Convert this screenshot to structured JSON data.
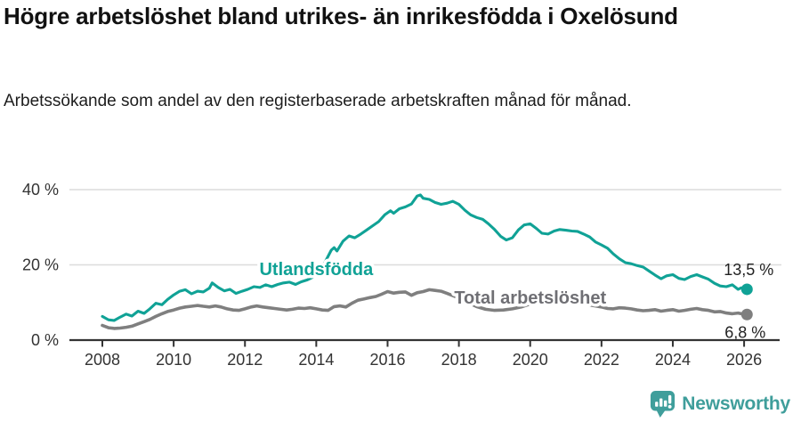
{
  "header": {
    "title": "Högre arbetslöshet bland utrikes- än inrikesfödda i Oxelösund",
    "subtitle": "Arbetssökande som andel av den registerbaserade arbetskraften månad för månad."
  },
  "footer": {
    "brand": "Newsworthy",
    "brand_color": "#3F9E9B",
    "logo_icon": "bar-chart-speech-bubble-icon"
  },
  "chart_data": {
    "type": "line",
    "title": "Högre arbetslöshet bland utrikes- än inrikesfödda i Oxelösund",
    "subtitle": "Arbetssökande som andel av den registerbaserade arbetskraften månad för månad.",
    "grid": "horizontal-only",
    "legend_position": "inline-labels-on-lines",
    "colors": {
      "axis": "#333333",
      "gridline": "#DCDCDC",
      "tick_label": "#333333"
    },
    "x_axis": {
      "range": [
        2007.6,
        2026.45
      ],
      "ticks": [
        2008,
        2010,
        2012,
        2014,
        2016,
        2018,
        2020,
        2022,
        2024,
        2026
      ]
    },
    "y_axis": {
      "range": [
        0,
        43
      ],
      "ticks": [
        {
          "value": 0,
          "label": "0 %"
        },
        {
          "value": 20,
          "label": "20 %"
        },
        {
          "value": 40,
          "label": "40 %"
        }
      ]
    },
    "series": [
      {
        "name": "Total arbetslöshet",
        "color": "#7F7F7F",
        "label_color": "#6F6F74",
        "label_anchor": {
          "x": 2020.0,
          "y": 9.7
        },
        "end_label": "6,8 %",
        "end_value": 6.8,
        "points": [
          [
            2008.0,
            3.9
          ],
          [
            2008.17,
            3.3
          ],
          [
            2008.33,
            3.1
          ],
          [
            2008.5,
            3.2
          ],
          [
            2008.67,
            3.4
          ],
          [
            2008.83,
            3.7
          ],
          [
            2009.0,
            4.3
          ],
          [
            2009.17,
            4.9
          ],
          [
            2009.33,
            5.5
          ],
          [
            2009.5,
            6.3
          ],
          [
            2009.67,
            7.0
          ],
          [
            2009.83,
            7.6
          ],
          [
            2010.0,
            8.0
          ],
          [
            2010.17,
            8.5
          ],
          [
            2010.33,
            8.8
          ],
          [
            2010.5,
            9.0
          ],
          [
            2010.67,
            9.2
          ],
          [
            2010.83,
            9.0
          ],
          [
            2011.0,
            8.8
          ],
          [
            2011.17,
            9.1
          ],
          [
            2011.33,
            8.8
          ],
          [
            2011.5,
            8.3
          ],
          [
            2011.67,
            8.0
          ],
          [
            2011.83,
            7.9
          ],
          [
            2012.0,
            8.3
          ],
          [
            2012.17,
            8.8
          ],
          [
            2012.33,
            9.1
          ],
          [
            2012.5,
            8.8
          ],
          [
            2012.67,
            8.6
          ],
          [
            2012.83,
            8.4
          ],
          [
            2013.0,
            8.2
          ],
          [
            2013.17,
            8.0
          ],
          [
            2013.33,
            8.2
          ],
          [
            2013.5,
            8.5
          ],
          [
            2013.67,
            8.4
          ],
          [
            2013.83,
            8.6
          ],
          [
            2014.0,
            8.3
          ],
          [
            2014.17,
            8.0
          ],
          [
            2014.33,
            7.9
          ],
          [
            2014.5,
            8.9
          ],
          [
            2014.67,
            9.1
          ],
          [
            2014.83,
            8.8
          ],
          [
            2015.0,
            9.8
          ],
          [
            2015.17,
            10.6
          ],
          [
            2015.33,
            10.9
          ],
          [
            2015.5,
            11.3
          ],
          [
            2015.67,
            11.6
          ],
          [
            2015.83,
            12.2
          ],
          [
            2016.0,
            12.9
          ],
          [
            2016.17,
            12.5
          ],
          [
            2016.33,
            12.7
          ],
          [
            2016.5,
            12.8
          ],
          [
            2016.67,
            11.9
          ],
          [
            2016.83,
            12.6
          ],
          [
            2017.0,
            12.9
          ],
          [
            2017.17,
            13.4
          ],
          [
            2017.33,
            13.2
          ],
          [
            2017.5,
            13.0
          ],
          [
            2017.67,
            12.4
          ],
          [
            2017.83,
            11.8
          ],
          [
            2018.0,
            11.2
          ],
          [
            2018.25,
            10.0
          ],
          [
            2018.5,
            8.9
          ],
          [
            2018.75,
            8.2
          ],
          [
            2019.0,
            7.9
          ],
          [
            2019.25,
            8.0
          ],
          [
            2019.5,
            8.3
          ],
          [
            2019.75,
            8.8
          ],
          [
            2020.0,
            9.6
          ],
          [
            2020.25,
            10.3
          ],
          [
            2020.5,
            10.7
          ],
          [
            2020.75,
            10.5
          ],
          [
            2021.0,
            10.2
          ],
          [
            2021.25,
            9.9
          ],
          [
            2021.5,
            9.6
          ],
          [
            2021.75,
            9.2
          ],
          [
            2022.0,
            8.8
          ],
          [
            2022.17,
            8.4
          ],
          [
            2022.33,
            8.3
          ],
          [
            2022.5,
            8.6
          ],
          [
            2022.67,
            8.5
          ],
          [
            2022.83,
            8.3
          ],
          [
            2023.0,
            8.0
          ],
          [
            2023.17,
            7.8
          ],
          [
            2023.33,
            7.9
          ],
          [
            2023.5,
            8.1
          ],
          [
            2023.67,
            7.7
          ],
          [
            2023.83,
            7.9
          ],
          [
            2024.0,
            8.1
          ],
          [
            2024.17,
            7.7
          ],
          [
            2024.33,
            7.9
          ],
          [
            2024.5,
            8.2
          ],
          [
            2024.67,
            8.4
          ],
          [
            2024.83,
            8.1
          ],
          [
            2025.0,
            7.9
          ],
          [
            2025.17,
            7.5
          ],
          [
            2025.33,
            7.6
          ],
          [
            2025.5,
            7.2
          ],
          [
            2025.67,
            7.0
          ],
          [
            2025.83,
            7.2
          ],
          [
            2025.92,
            7.0
          ],
          [
            2026.08,
            6.8
          ]
        ]
      },
      {
        "name": "Utlandsfödda",
        "color": "#10A296",
        "label_color": "#10A296",
        "label_anchor": {
          "x": 2014.0,
          "y": 17.3
        },
        "end_label": "13,5 %",
        "end_value": 13.5,
        "points": [
          [
            2008.0,
            6.3
          ],
          [
            2008.17,
            5.4
          ],
          [
            2008.33,
            5.2
          ],
          [
            2008.5,
            6.1
          ],
          [
            2008.67,
            6.9
          ],
          [
            2008.83,
            6.4
          ],
          [
            2009.0,
            7.7
          ],
          [
            2009.17,
            7.1
          ],
          [
            2009.33,
            8.3
          ],
          [
            2009.5,
            9.8
          ],
          [
            2009.67,
            9.4
          ],
          [
            2009.83,
            10.8
          ],
          [
            2010.0,
            12.0
          ],
          [
            2010.17,
            13.0
          ],
          [
            2010.33,
            13.4
          ],
          [
            2010.5,
            12.3
          ],
          [
            2010.67,
            13.0
          ],
          [
            2010.83,
            12.8
          ],
          [
            2011.0,
            13.8
          ],
          [
            2011.08,
            15.2
          ],
          [
            2011.25,
            14.0
          ],
          [
            2011.42,
            13.1
          ],
          [
            2011.58,
            13.5
          ],
          [
            2011.75,
            12.4
          ],
          [
            2011.92,
            13.0
          ],
          [
            2012.08,
            13.5
          ],
          [
            2012.25,
            14.2
          ],
          [
            2012.42,
            14.0
          ],
          [
            2012.58,
            14.7
          ],
          [
            2012.75,
            14.2
          ],
          [
            2012.92,
            14.8
          ],
          [
            2013.08,
            15.2
          ],
          [
            2013.25,
            15.4
          ],
          [
            2013.42,
            14.8
          ],
          [
            2013.58,
            15.5
          ],
          [
            2013.75,
            16.0
          ],
          [
            2013.92,
            16.8
          ],
          [
            2014.08,
            18.5
          ],
          [
            2014.25,
            20.8
          ],
          [
            2014.42,
            23.9
          ],
          [
            2014.5,
            24.6
          ],
          [
            2014.58,
            23.7
          ],
          [
            2014.75,
            26.3
          ],
          [
            2014.92,
            27.7
          ],
          [
            2015.08,
            27.2
          ],
          [
            2015.25,
            28.2
          ],
          [
            2015.42,
            29.3
          ],
          [
            2015.58,
            30.4
          ],
          [
            2015.75,
            31.5
          ],
          [
            2015.92,
            33.3
          ],
          [
            2016.08,
            34.4
          ],
          [
            2016.17,
            33.7
          ],
          [
            2016.33,
            34.9
          ],
          [
            2016.5,
            35.4
          ],
          [
            2016.67,
            36.2
          ],
          [
            2016.83,
            38.3
          ],
          [
            2016.92,
            38.6
          ],
          [
            2017.0,
            37.7
          ],
          [
            2017.17,
            37.4
          ],
          [
            2017.33,
            36.6
          ],
          [
            2017.5,
            36.1
          ],
          [
            2017.67,
            36.4
          ],
          [
            2017.83,
            36.9
          ],
          [
            2018.0,
            36.1
          ],
          [
            2018.17,
            34.5
          ],
          [
            2018.33,
            33.3
          ],
          [
            2018.5,
            32.6
          ],
          [
            2018.67,
            32.1
          ],
          [
            2018.83,
            30.9
          ],
          [
            2019.0,
            29.4
          ],
          [
            2019.17,
            27.6
          ],
          [
            2019.33,
            26.6
          ],
          [
            2019.5,
            27.2
          ],
          [
            2019.67,
            29.3
          ],
          [
            2019.83,
            30.6
          ],
          [
            2020.0,
            30.9
          ],
          [
            2020.17,
            29.7
          ],
          [
            2020.33,
            28.4
          ],
          [
            2020.5,
            28.2
          ],
          [
            2020.67,
            29.0
          ],
          [
            2020.83,
            29.4
          ],
          [
            2021.0,
            29.2
          ],
          [
            2021.17,
            29.0
          ],
          [
            2021.33,
            28.9
          ],
          [
            2021.5,
            28.2
          ],
          [
            2021.67,
            27.4
          ],
          [
            2021.83,
            26.1
          ],
          [
            2022.0,
            25.3
          ],
          [
            2022.17,
            24.4
          ],
          [
            2022.33,
            22.9
          ],
          [
            2022.5,
            21.6
          ],
          [
            2022.67,
            20.6
          ],
          [
            2022.83,
            20.3
          ],
          [
            2023.0,
            19.8
          ],
          [
            2023.17,
            19.4
          ],
          [
            2023.33,
            18.4
          ],
          [
            2023.5,
            17.3
          ],
          [
            2023.67,
            16.3
          ],
          [
            2023.83,
            17.1
          ],
          [
            2024.0,
            17.4
          ],
          [
            2024.17,
            16.4
          ],
          [
            2024.33,
            16.1
          ],
          [
            2024.5,
            16.9
          ],
          [
            2024.67,
            17.4
          ],
          [
            2024.83,
            16.8
          ],
          [
            2025.0,
            16.2
          ],
          [
            2025.17,
            15.1
          ],
          [
            2025.33,
            14.4
          ],
          [
            2025.5,
            14.2
          ],
          [
            2025.67,
            14.7
          ],
          [
            2025.83,
            13.5
          ],
          [
            2025.92,
            13.9
          ],
          [
            2026.08,
            13.5
          ]
        ]
      }
    ]
  }
}
